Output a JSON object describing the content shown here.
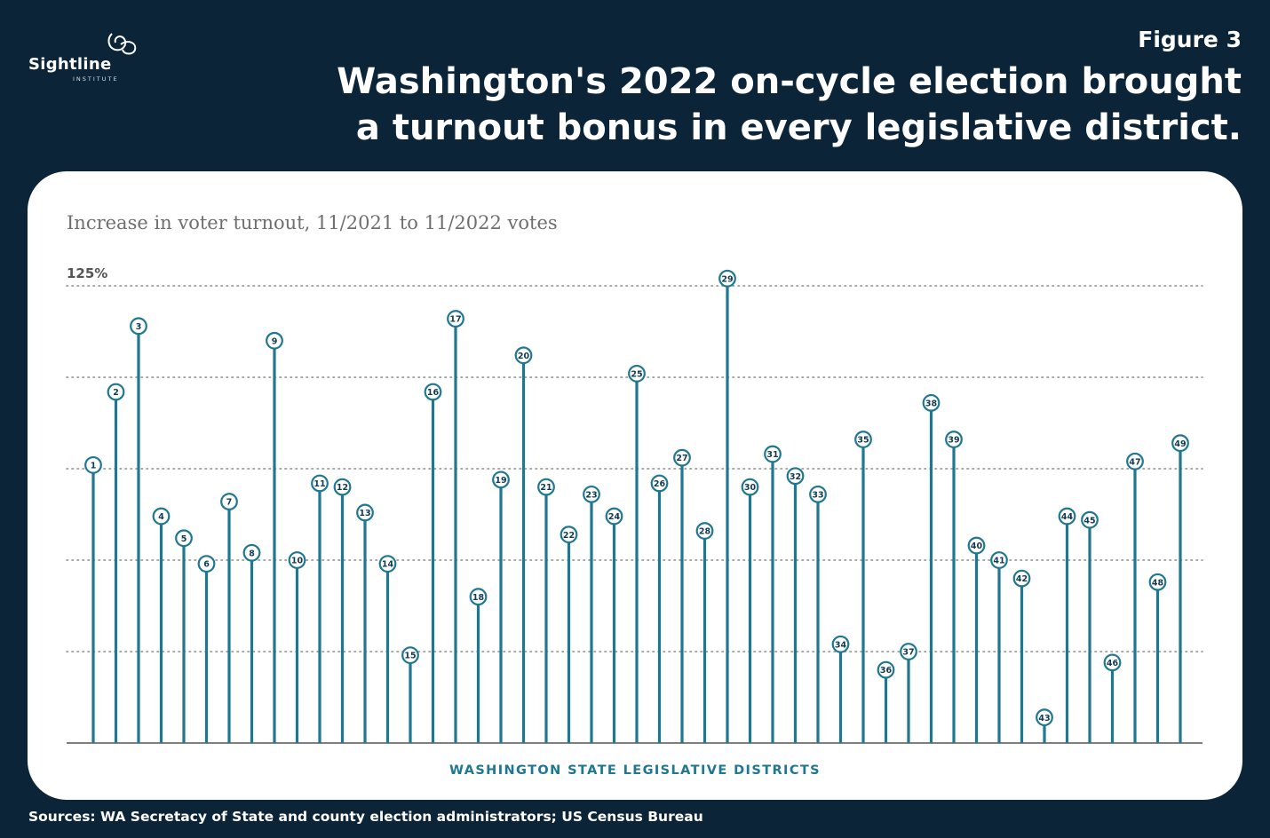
{
  "brand": {
    "name": "Sightline",
    "tagline": "INSTITUTE",
    "icon": "sightline-swirl-icon"
  },
  "header": {
    "figure_label": "Figure 3",
    "title_line1": "Washington's 2022 on-cycle election brought",
    "title_line2": "a turnout bonus in every legislative district."
  },
  "source": "Sources: WA Secretacy of State and county election administrators; US Census Bureau",
  "colors": {
    "background": "#0b2438",
    "accent": "#1f7792",
    "card": "#ffffff"
  },
  "chart_data": {
    "type": "lollipop",
    "title": "Increase in voter turnout, 11/2021 to 11/2022 votes",
    "xlabel": "Washington state legislative districts",
    "ylabel": "",
    "ylim": [
      0,
      125
    ],
    "y_tick_label": "125%",
    "y_tick_label_value": 125,
    "gridlines": [
      25,
      50,
      75,
      100,
      125
    ],
    "grid": true,
    "legend": "none",
    "categories": [
      "1",
      "2",
      "3",
      "4",
      "5",
      "6",
      "7",
      "8",
      "9",
      "10",
      "11",
      "12",
      "13",
      "14",
      "15",
      "16",
      "17",
      "18",
      "19",
      "20",
      "21",
      "22",
      "23",
      "24",
      "25",
      "26",
      "27",
      "28",
      "29",
      "30",
      "31",
      "32",
      "33",
      "34",
      "35",
      "36",
      "37",
      "38",
      "39",
      "40",
      "41",
      "42",
      "43",
      "44",
      "45",
      "46",
      "47",
      "48",
      "49"
    ],
    "values": [
      76,
      96,
      114,
      62,
      56,
      49,
      66,
      52,
      110,
      50,
      71,
      70,
      63,
      49,
      24,
      96,
      116,
      40,
      72,
      106,
      70,
      57,
      68,
      62,
      101,
      71,
      78,
      58,
      127,
      70,
      79,
      73,
      68,
      27,
      83,
      20,
      25,
      93,
      83,
      54,
      50,
      45,
      7,
      62,
      61,
      22,
      77,
      44,
      82
    ]
  }
}
